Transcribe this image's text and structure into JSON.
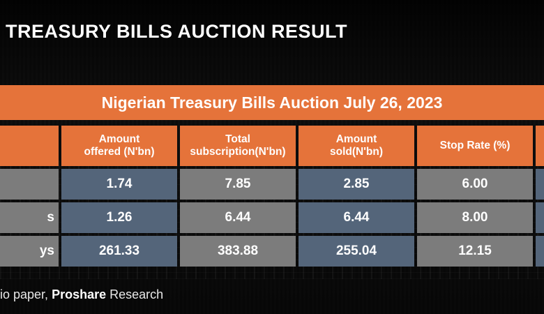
{
  "headline": "TREASURY BILLS AUCTION RESULT",
  "banner": "Nigerian Treasury Bills Auction July 26, 2023",
  "table": {
    "headers": [
      "Amount\noffered (N'bn)",
      "Total\nsubscription(N'bn)",
      "Amount\nsold(N'bn)",
      "Stop Rate (%)"
    ],
    "rows": [
      {
        "label": "",
        "cells": [
          "1.74",
          "7.85",
          "2.85",
          "6.00"
        ]
      },
      {
        "label": "s",
        "cells": [
          "1.26",
          "6.44",
          "6.44",
          "8.00"
        ]
      },
      {
        "label": "ys",
        "cells": [
          "261.33",
          "383.88",
          "255.04",
          "12.15"
        ]
      }
    ]
  },
  "source": {
    "prefix": "io paper, ",
    "brand": "Proshare",
    "suffix": " Research"
  },
  "colors": {
    "accent": "#e5733a",
    "blue_cell": "#54657a",
    "gray_cell": "#7c7c7c"
  }
}
